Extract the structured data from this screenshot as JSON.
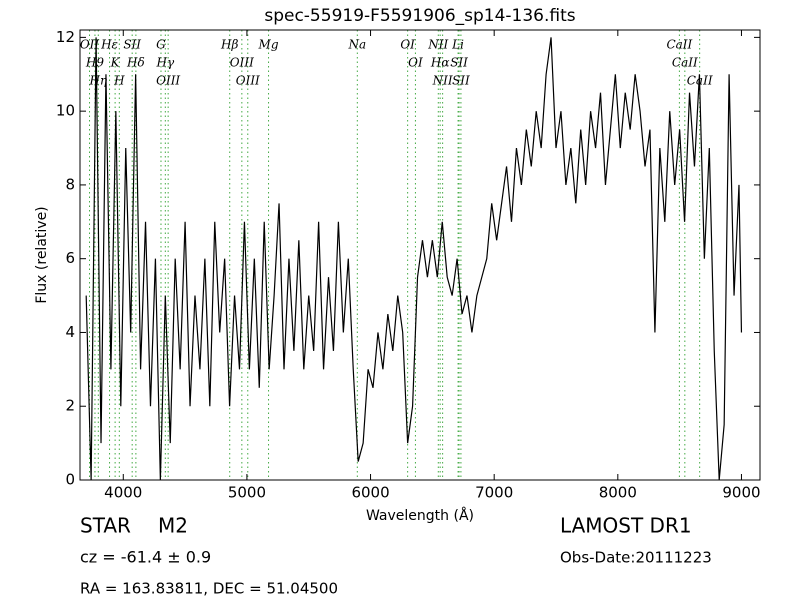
{
  "chart_data": {
    "type": "line",
    "title": "spec-55919-F5591906_sp14-136.fits",
    "xlabel": "Wavelength (Å)",
    "ylabel": "Flux (relative)",
    "color": "#000000",
    "line_color": "#44aa44",
    "xlim": [
      3650,
      9150
    ],
    "ylim": [
      0,
      12.2
    ],
    "xticks": [
      4000,
      5000,
      6000,
      7000,
      8000,
      9000
    ],
    "yticks": [
      0,
      2,
      4,
      6,
      8,
      10,
      12
    ],
    "x": [
      3700,
      3740,
      3780,
      3820,
      3860,
      3900,
      3940,
      3980,
      4020,
      4060,
      4100,
      4140,
      4180,
      4220,
      4260,
      4300,
      4340,
      4380,
      4420,
      4460,
      4500,
      4540,
      4580,
      4620,
      4660,
      4700,
      4740,
      4780,
      4820,
      4860,
      4900,
      4940,
      4980,
      5020,
      5060,
      5100,
      5140,
      5180,
      5220,
      5260,
      5300,
      5340,
      5380,
      5420,
      5460,
      5500,
      5540,
      5580,
      5620,
      5660,
      5700,
      5740,
      5780,
      5820,
      5860,
      5900,
      5940,
      5980,
      6020,
      6060,
      6100,
      6140,
      6180,
      6220,
      6260,
      6300,
      6340,
      6380,
      6420,
      6460,
      6500,
      6540,
      6580,
      6620,
      6660,
      6700,
      6740,
      6780,
      6820,
      6860,
      6900,
      6940,
      6980,
      7020,
      7060,
      7100,
      7140,
      7180,
      7220,
      7260,
      7300,
      7340,
      7380,
      7420,
      7460,
      7500,
      7540,
      7580,
      7620,
      7660,
      7700,
      7740,
      7780,
      7820,
      7860,
      7900,
      7940,
      7980,
      8020,
      8060,
      8100,
      8140,
      8180,
      8220,
      8260,
      8300,
      8340,
      8380,
      8420,
      8460,
      8500,
      8540,
      8580,
      8620,
      8660,
      8700,
      8740,
      8780,
      8820,
      8860,
      8900,
      8940,
      8980,
      9000
    ],
    "values": [
      5,
      0,
      12,
      1,
      11,
      3,
      10,
      2,
      9,
      4,
      11,
      3,
      7,
      2,
      6,
      0,
      5,
      1,
      6,
      3,
      7,
      2,
      5,
      3,
      6,
      2,
      7,
      4,
      6,
      2,
      5,
      3,
      7,
      3,
      6,
      2.5,
      7,
      3,
      5,
      7.5,
      3,
      6,
      3.5,
      6.5,
      3,
      5,
      3.5,
      7,
      3,
      5.5,
      3.5,
      7,
      4,
      6,
      3,
      0.5,
      1,
      3,
      2.5,
      4,
      3,
      4.5,
      3.5,
      5,
      4,
      1,
      2,
      5.5,
      6.5,
      5.5,
      6.5,
      5.5,
      7,
      5.5,
      5,
      6,
      4.5,
      5,
      4,
      5,
      5.5,
      6,
      7.5,
      6.5,
      7.5,
      8.5,
      7,
      9,
      8,
      9.5,
      8.5,
      10,
      9,
      11,
      12,
      9,
      10,
      8,
      9,
      7.5,
      9.5,
      8,
      10,
      9,
      10.5,
      8,
      9.5,
      11,
      9,
      10.5,
      9.5,
      11,
      10,
      8.5,
      9.5,
      4,
      9,
      7,
      10,
      8,
      9.5,
      7,
      10.5,
      8.5,
      11,
      6,
      9,
      3.5,
      0,
      1.5,
      11,
      5,
      8,
      4
    ],
    "lines": [
      {
        "label": "OII",
        "wavelength": 3727
      },
      {
        "label": "H9",
        "wavelength": 3771
      },
      {
        "label": "Hη",
        "wavelength": 3798
      },
      {
        "label": "Hε",
        "wavelength": 3889
      },
      {
        "label": "K",
        "wavelength": 3934
      },
      {
        "label": "H",
        "wavelength": 3968
      },
      {
        "label": "SII",
        "wavelength": 4072
      },
      {
        "label": "Hδ",
        "wavelength": 4102
      },
      {
        "label": "G",
        "wavelength": 4305
      },
      {
        "label": "Hγ",
        "wavelength": 4340
      },
      {
        "label": "OIII",
        "wavelength": 4363
      },
      {
        "label": "Hβ",
        "wavelength": 4861
      },
      {
        "label": "OIII",
        "wavelength": 4959
      },
      {
        "label": "OIII",
        "wavelength": 5007
      },
      {
        "label": "Mg",
        "wavelength": 5175
      },
      {
        "label": "Na",
        "wavelength": 5893
      },
      {
        "label": "OI",
        "wavelength": 6300
      },
      {
        "label": "OI",
        "wavelength": 6363
      },
      {
        "label": "NII",
        "wavelength": 6548
      },
      {
        "label": "Hα",
        "wavelength": 6563
      },
      {
        "label": "NII",
        "wavelength": 6583
      },
      {
        "label": "Li",
        "wavelength": 6708
      },
      {
        "label": "SII",
        "wavelength": 6716
      },
      {
        "label": "SII",
        "wavelength": 6731
      },
      {
        "label": "CaII",
        "wavelength": 8498
      },
      {
        "label": "CaII",
        "wavelength": 8542
      },
      {
        "label": "CaII",
        "wavelength": 8662
      }
    ]
  },
  "info": {
    "class": "STAR",
    "subclass": "M2",
    "cz": "cz = -61.4 ± 0.9",
    "coords": "RA = 163.83811, DEC = 51.04500",
    "survey": "LAMOST DR1",
    "date": "Obs-Date:20111223"
  }
}
